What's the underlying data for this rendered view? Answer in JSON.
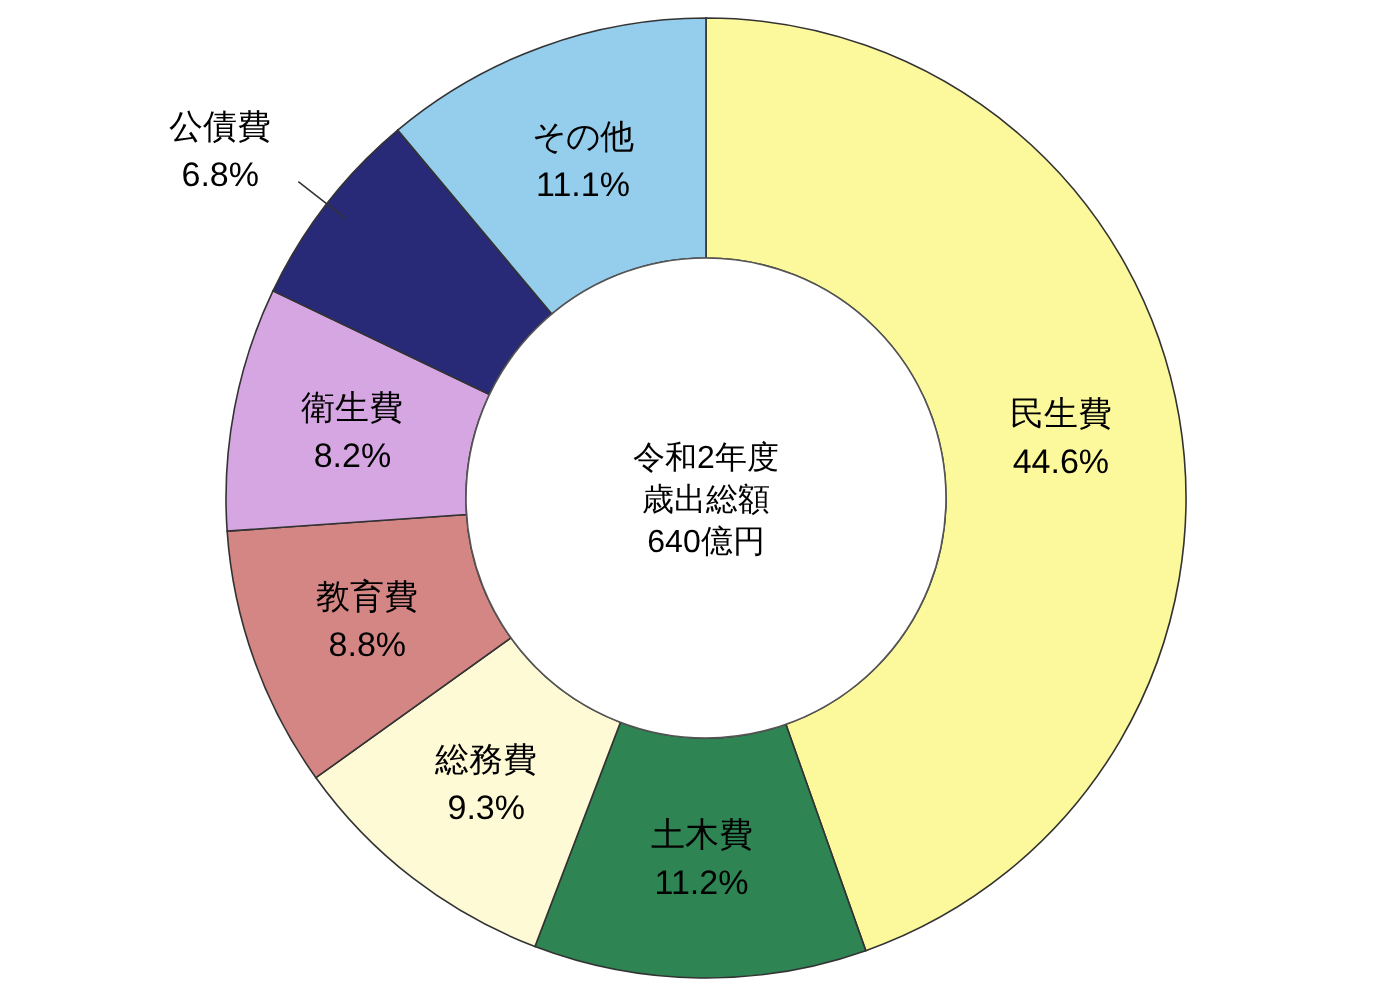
{
  "chart_data": {
    "type": "donut",
    "annotations": [
      "令和2年度",
      "歳出総額",
      "640億円"
    ],
    "categories": [
      "民生費",
      "土木費",
      "総務費",
      "教育費",
      "衛生費",
      "公債費",
      "その他"
    ],
    "values": [
      44.6,
      11.2,
      9.3,
      8.8,
      8.2,
      6.8,
      11.1
    ],
    "colors": [
      "#fcf99c",
      "#2e8452",
      "#fffad6",
      "#d48684",
      "#d6a6e2",
      "#282a78",
      "#95cdec"
    ],
    "value_labels": [
      "44.6%",
      "11.2%",
      "9.3%",
      "8.8%",
      "8.2%",
      "6.8%",
      "11.1%"
    ]
  }
}
